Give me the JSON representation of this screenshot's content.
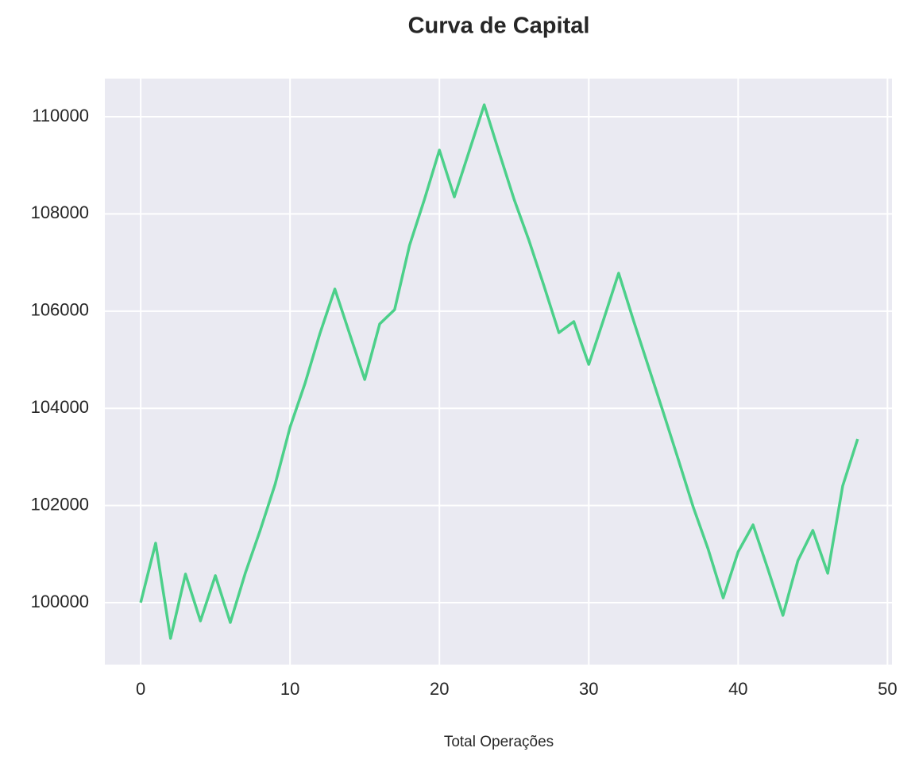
{
  "chart_data": {
    "type": "line",
    "title": "Curva de Capital",
    "xlabel": "Total Operações",
    "x": [
      0,
      1,
      2,
      3,
      4,
      5,
      6,
      7,
      8,
      9,
      10,
      11,
      12,
      13,
      14,
      15,
      16,
      17,
      18,
      19,
      20,
      21,
      22,
      23,
      24,
      25,
      26,
      27,
      28,
      29,
      30,
      31,
      32,
      33,
      34,
      35,
      36,
      37,
      38,
      39,
      40,
      41,
      42,
      43,
      44,
      45,
      46,
      47,
      48
    ],
    "series": [
      {
        "name": "Capital",
        "color": "#4cd08a",
        "values": [
          100000,
          101225,
          99265,
          100588,
          99624,
          100556,
          99592,
          100605,
          101487,
          102435,
          103611,
          104510,
          105539,
          106454,
          105523,
          104592,
          105735,
          106029,
          107353,
          108301,
          109314,
          108350,
          109297,
          110245,
          109265,
          108301,
          107451,
          106520,
          105556,
          105784,
          104902,
          105833,
          106781,
          105801,
          104853,
          103905,
          102941,
          101961,
          101095,
          100098,
          101046,
          101601,
          100686,
          99739,
          100866,
          101487,
          100605,
          102402,
          103366
        ]
      }
    ],
    "xlim": [
      -2.4,
      50.3
    ],
    "ylim": [
      98725,
      110785
    ],
    "xticks": [
      0,
      10,
      20,
      30,
      40,
      50
    ],
    "yticks": [
      100000,
      102000,
      104000,
      106000,
      108000,
      110000
    ],
    "grid": true,
    "legend": false
  }
}
